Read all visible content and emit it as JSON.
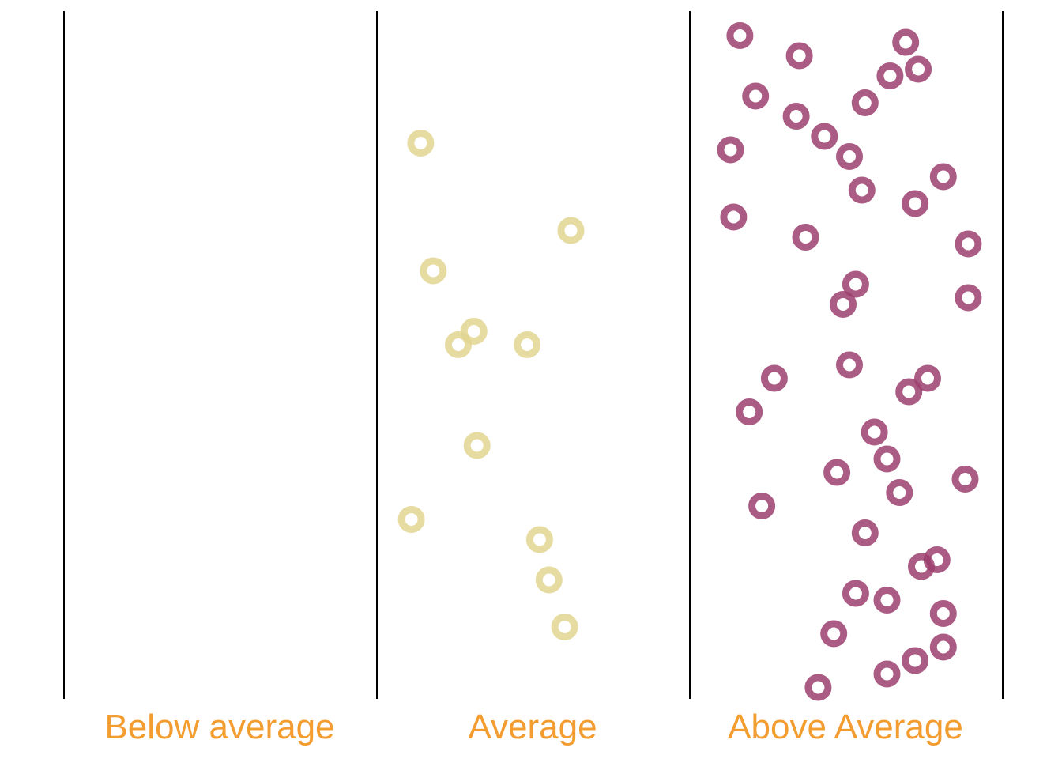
{
  "chart_data": {
    "type": "scatter",
    "title": "",
    "xlabel": "",
    "ylabel": "",
    "categories": [
      "Below average",
      "Average",
      "Above Average"
    ],
    "label_color": "#f39c2f",
    "axis_color": "#000000",
    "grid": false,
    "legend": "none",
    "series": [
      {
        "category": "Below average",
        "color": "#e2d58f",
        "points": []
      },
      {
        "category": "Average",
        "color": "#e2d58f",
        "points": [
          {
            "x": 0.14,
            "y": 0.82
          },
          {
            "x": 0.62,
            "y": 0.69
          },
          {
            "x": 0.18,
            "y": 0.63
          },
          {
            "x": 0.31,
            "y": 0.54
          },
          {
            "x": 0.26,
            "y": 0.52
          },
          {
            "x": 0.48,
            "y": 0.52
          },
          {
            "x": 0.32,
            "y": 0.37
          },
          {
            "x": 0.11,
            "y": 0.26
          },
          {
            "x": 0.52,
            "y": 0.23
          },
          {
            "x": 0.55,
            "y": 0.17
          },
          {
            "x": 0.6,
            "y": 0.1
          }
        ]
      },
      {
        "category": "Above Average",
        "color": "#9c3f6f",
        "points": [
          {
            "x": 0.16,
            "y": 0.98
          },
          {
            "x": 0.69,
            "y": 0.97
          },
          {
            "x": 0.35,
            "y": 0.95
          },
          {
            "x": 0.73,
            "y": 0.93
          },
          {
            "x": 0.64,
            "y": 0.92
          },
          {
            "x": 0.21,
            "y": 0.89
          },
          {
            "x": 0.56,
            "y": 0.88
          },
          {
            "x": 0.34,
            "y": 0.86
          },
          {
            "x": 0.43,
            "y": 0.83
          },
          {
            "x": 0.13,
            "y": 0.81
          },
          {
            "x": 0.51,
            "y": 0.8
          },
          {
            "x": 0.81,
            "y": 0.77
          },
          {
            "x": 0.55,
            "y": 0.75
          },
          {
            "x": 0.72,
            "y": 0.73
          },
          {
            "x": 0.14,
            "y": 0.71
          },
          {
            "x": 0.37,
            "y": 0.68
          },
          {
            "x": 0.89,
            "y": 0.67
          },
          {
            "x": 0.53,
            "y": 0.61
          },
          {
            "x": 0.49,
            "y": 0.58
          },
          {
            "x": 0.89,
            "y": 0.59
          },
          {
            "x": 0.51,
            "y": 0.49
          },
          {
            "x": 0.27,
            "y": 0.47
          },
          {
            "x": 0.76,
            "y": 0.47
          },
          {
            "x": 0.7,
            "y": 0.45
          },
          {
            "x": 0.19,
            "y": 0.42
          },
          {
            "x": 0.59,
            "y": 0.39
          },
          {
            "x": 0.63,
            "y": 0.35
          },
          {
            "x": 0.47,
            "y": 0.33
          },
          {
            "x": 0.88,
            "y": 0.32
          },
          {
            "x": 0.67,
            "y": 0.3
          },
          {
            "x": 0.23,
            "y": 0.28
          },
          {
            "x": 0.56,
            "y": 0.24
          },
          {
            "x": 0.79,
            "y": 0.2
          },
          {
            "x": 0.74,
            "y": 0.19
          },
          {
            "x": 0.53,
            "y": 0.15
          },
          {
            "x": 0.63,
            "y": 0.14
          },
          {
            "x": 0.81,
            "y": 0.12
          },
          {
            "x": 0.46,
            "y": 0.09
          },
          {
            "x": 0.81,
            "y": 0.07
          },
          {
            "x": 0.72,
            "y": 0.05
          },
          {
            "x": 0.63,
            "y": 0.03
          },
          {
            "x": 0.41,
            "y": 0.01
          }
        ]
      }
    ]
  }
}
